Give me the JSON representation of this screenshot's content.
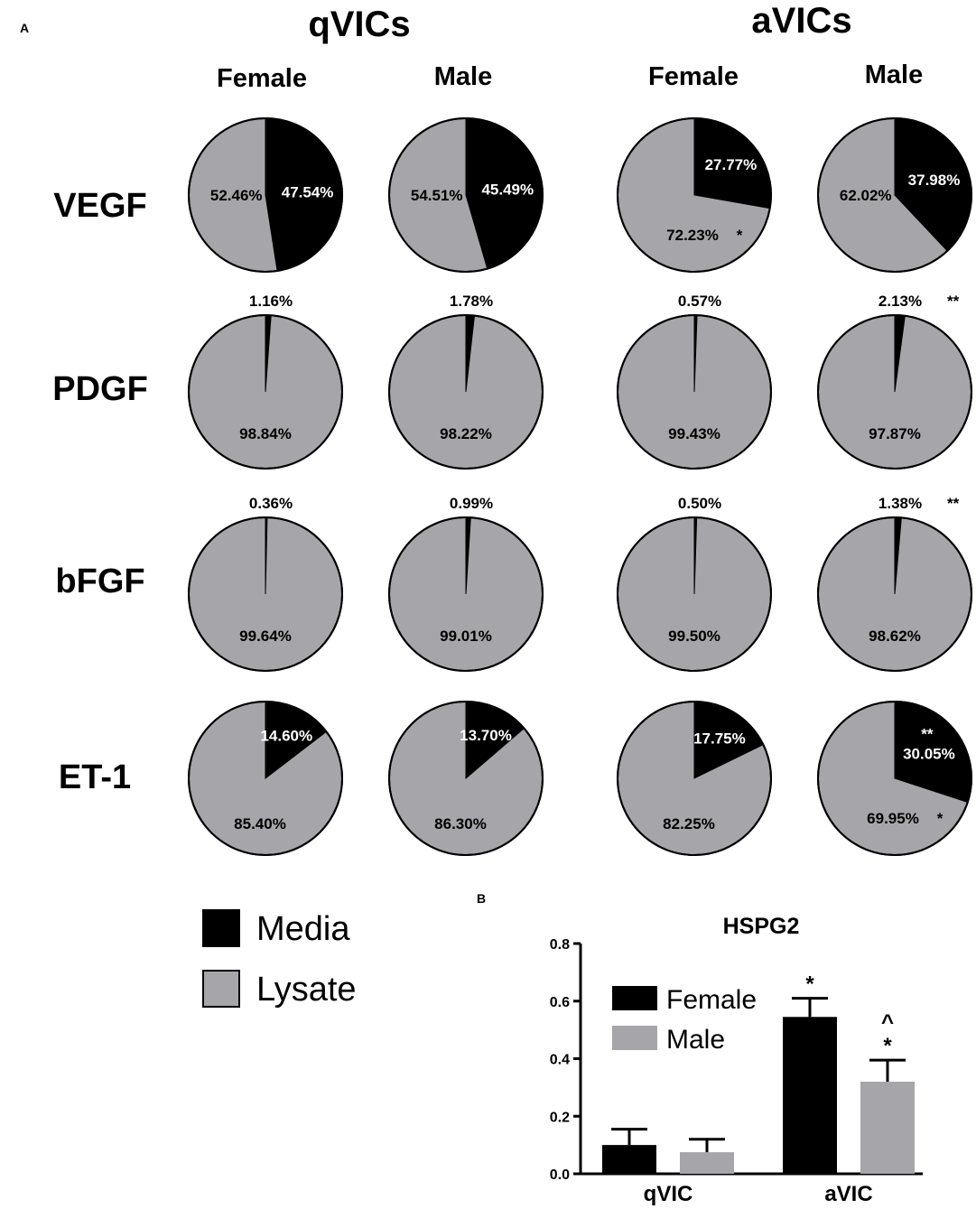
{
  "colors": {
    "media": "#000000",
    "lysate": "#a6a6aa",
    "female_bar": "#000000",
    "male_bar": "#a6a6aa"
  },
  "panel_a": {
    "label": "A",
    "groups": [
      "qVICs",
      "aVICs"
    ],
    "sexes": [
      "Female",
      "Male",
      "Female",
      "Male"
    ],
    "rows": [
      "VEGF",
      "PDGF",
      "bFGF",
      "ET-1"
    ],
    "legend": {
      "media": "Media",
      "lysate": "Lysate"
    }
  },
  "panel_b": {
    "label": "B"
  },
  "chart_data": [
    {
      "type": "pie",
      "description": "Media vs Lysate distribution per growth factor, group and sex",
      "columns": [
        "qVICs Female",
        "qVICs Male",
        "aVICs Female",
        "aVICs Male"
      ],
      "pies": [
        {
          "row": "VEGF",
          "group": "qVICs",
          "sex": "Female",
          "media": 47.54,
          "lysate": 52.46,
          "media_label": "47.54%",
          "lysate_label": "52.46%",
          "media_note": "",
          "lysate_note": ""
        },
        {
          "row": "VEGF",
          "group": "qVICs",
          "sex": "Male",
          "media": 45.49,
          "lysate": 54.51,
          "media_label": "45.49%",
          "lysate_label": "54.51%",
          "media_note": "",
          "lysate_note": ""
        },
        {
          "row": "VEGF",
          "group": "aVICs",
          "sex": "Female",
          "media": 27.77,
          "lysate": 72.23,
          "media_label": "27.77%",
          "lysate_label": "72.23%",
          "media_note": "",
          "lysate_note": "*"
        },
        {
          "row": "VEGF",
          "group": "aVICs",
          "sex": "Male",
          "media": 37.98,
          "lysate": 62.02,
          "media_label": "37.98%",
          "lysate_label": "62.02%",
          "media_note": "",
          "lysate_note": ""
        },
        {
          "row": "PDGF",
          "group": "qVICs",
          "sex": "Female",
          "media": 1.16,
          "lysate": 98.84,
          "media_label": "1.16%",
          "lysate_label": "98.84%",
          "media_note": "",
          "lysate_note": ""
        },
        {
          "row": "PDGF",
          "group": "qVICs",
          "sex": "Male",
          "media": 1.78,
          "lysate": 98.22,
          "media_label": "1.78%",
          "lysate_label": "98.22%",
          "media_note": "",
          "lysate_note": ""
        },
        {
          "row": "PDGF",
          "group": "aVICs",
          "sex": "Female",
          "media": 0.57,
          "lysate": 99.43,
          "media_label": "0.57%",
          "lysate_label": "99.43%",
          "media_note": "",
          "lysate_note": ""
        },
        {
          "row": "PDGF",
          "group": "aVICs",
          "sex": "Male",
          "media": 2.13,
          "lysate": 97.87,
          "media_label": "2.13%",
          "lysate_label": "97.87%",
          "media_note": "**",
          "lysate_note": ""
        },
        {
          "row": "bFGF",
          "group": "qVICs",
          "sex": "Female",
          "media": 0.36,
          "lysate": 99.64,
          "media_label": "0.36%",
          "lysate_label": "99.64%",
          "media_note": "",
          "lysate_note": ""
        },
        {
          "row": "bFGF",
          "group": "qVICs",
          "sex": "Male",
          "media": 0.99,
          "lysate": 99.01,
          "media_label": "0.99%",
          "lysate_label": "99.01%",
          "media_note": "",
          "lysate_note": ""
        },
        {
          "row": "bFGF",
          "group": "aVICs",
          "sex": "Female",
          "media": 0.5,
          "lysate": 99.5,
          "media_label": "0.50%",
          "lysate_label": "99.50%",
          "media_note": "",
          "lysate_note": ""
        },
        {
          "row": "bFGF",
          "group": "aVICs",
          "sex": "Male",
          "media": 1.38,
          "lysate": 98.62,
          "media_label": "1.38%",
          "lysate_label": "98.62%",
          "media_note": "**",
          "lysate_note": ""
        },
        {
          "row": "ET-1",
          "group": "qVICs",
          "sex": "Female",
          "media": 14.6,
          "lysate": 85.4,
          "media_label": "14.60%",
          "lysate_label": "85.40%",
          "media_note": "",
          "lysate_note": ""
        },
        {
          "row": "ET-1",
          "group": "qVICs",
          "sex": "Male",
          "media": 13.7,
          "lysate": 86.3,
          "media_label": "13.70%",
          "lysate_label": "86.30%",
          "media_note": "",
          "lysate_note": ""
        },
        {
          "row": "ET-1",
          "group": "aVICs",
          "sex": "Female",
          "media": 17.75,
          "lysate": 82.25,
          "media_label": "17.75%",
          "lysate_label": "82.25%",
          "media_note": "",
          "lysate_note": ""
        },
        {
          "row": "ET-1",
          "group": "aVICs",
          "sex": "Male",
          "media": 30.05,
          "lysate": 69.95,
          "media_label": "30.05%",
          "lysate_label": "69.95%",
          "media_note": "**",
          "lysate_note": "*"
        }
      ],
      "legend": [
        "Media",
        "Lysate"
      ]
    },
    {
      "type": "bar",
      "title": "HSPG2",
      "categories": [
        "qVIC",
        "aVIC"
      ],
      "series": [
        {
          "name": "Female",
          "values": [
            0.1,
            0.545
          ],
          "errors": [
            0.055,
            0.065
          ],
          "annotations": [
            "",
            "*"
          ]
        },
        {
          "name": "Male",
          "values": [
            0.075,
            0.32
          ],
          "errors": [
            0.045,
            0.075
          ],
          "annotations": [
            "",
            "^\n*"
          ]
        }
      ],
      "ylim": [
        0.0,
        0.8
      ],
      "yticks": [
        "0.0",
        "0.2",
        "0.4",
        "0.6",
        "0.8"
      ],
      "legend": "top-left"
    }
  ]
}
